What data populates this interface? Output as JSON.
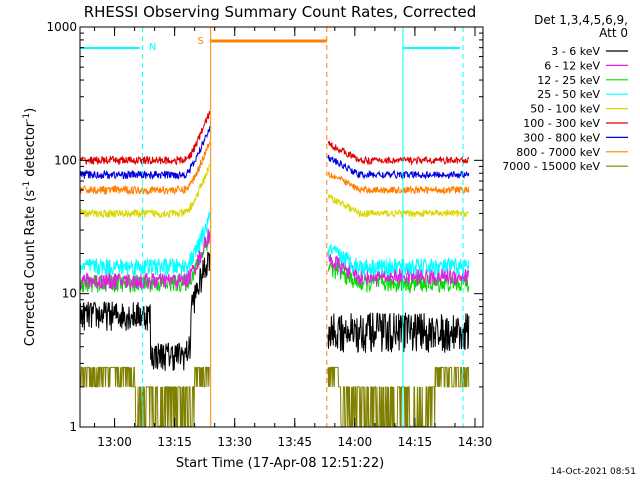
{
  "chart_data": {
    "type": "line",
    "title": "RHESSI Observing Summary Count Rates, Corrected",
    "xlabel": "Start Time (17-Apr-08 12:51:22)",
    "ylabel": "Corrected Count Rate (s",
    "ylabel_sup": "-1",
    "ylabel_mid": " detector",
    "ylabel_end": ")",
    "y_scale": "log",
    "ylim": [
      1,
      1000
    ],
    "xlim": [
      "12:51:22",
      "14:32:00"
    ],
    "y_ticks": [
      1,
      10,
      100,
      1000
    ],
    "y_tick_labels": [
      "1",
      "10",
      "100",
      "1000"
    ],
    "x_tick_labels": [
      "13:00",
      "13:15",
      "13:30",
      "13:45",
      "14:00",
      "14:15",
      "14:30"
    ],
    "x_ticks": [
      "13:00",
      "13:15",
      "13:30",
      "13:45",
      "14:00",
      "14:15",
      "14:30"
    ],
    "grid": false,
    "legend_placement": "right",
    "legend_header": [
      "Det 1,3,4,5,6,9,",
      "Att 0"
    ],
    "timestamp": "14-Oct-2021 08:51",
    "night_marker_label": "N",
    "saa_marker_label": "S",
    "data_gap": [
      "13:24",
      "13:53"
    ],
    "night_intervals": [
      [
        "12:51:22",
        "13:07"
      ],
      [
        "14:12",
        "14:27"
      ]
    ],
    "saa_interval": [
      "13:24",
      "13:53"
    ],
    "series": [
      {
        "name": "3 - 6 keV",
        "color": "#000000",
        "level_before": 7,
        "level_after": 5.5,
        "dip": 3.5
      },
      {
        "name": "6 - 12 keV",
        "color": "#e020e0",
        "level_before": 12.5,
        "level_after": 13.5
      },
      {
        "name": "12 - 25 keV",
        "color": "#00e000",
        "level_before": 12,
        "level_after": 12
      },
      {
        "name": "25 - 50 keV",
        "color": "#00ffff",
        "level_before": 16,
        "level_after": 16
      },
      {
        "name": "50 - 100 keV",
        "color": "#d8d800",
        "level_before": 40,
        "level_after": 40
      },
      {
        "name": "100 - 300 keV",
        "color": "#e00000",
        "level_before": 100,
        "level_after": 100
      },
      {
        "name": "300 - 800 keV",
        "color": "#0000e0",
        "level_before": 78,
        "level_after": 78
      },
      {
        "name": "800 - 7000 keV",
        "color": "#ff8000",
        "level_before": 60,
        "level_after": 60
      },
      {
        "name": "7000 - 15000 keV",
        "color": "#808000",
        "level_before": 2.5,
        "level_after": 2.5
      }
    ]
  }
}
